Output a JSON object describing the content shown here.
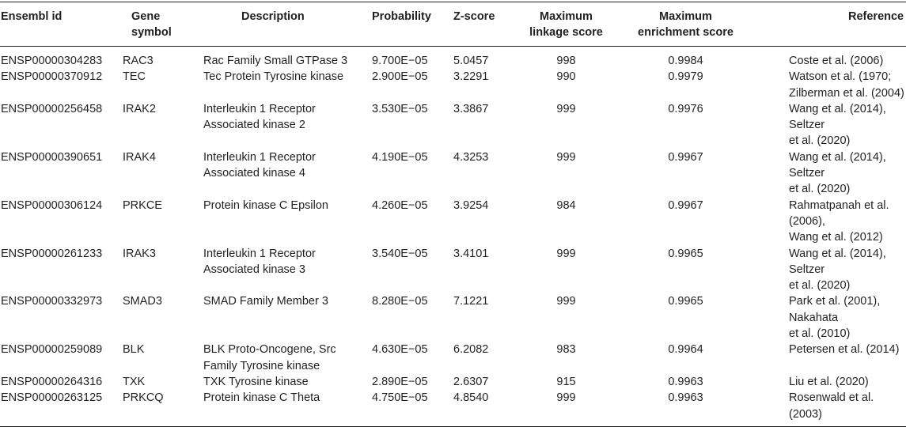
{
  "headers": {
    "ensembl": "Ensembl id",
    "symbol_line1": "Gene",
    "symbol_line2": "symbol",
    "description": "Description",
    "probability": "Probability",
    "zscore": "Z-score",
    "linkage_line1": "Maximum",
    "linkage_line2": "linkage score",
    "enrichment_line1": "Maximum",
    "enrichment_line2": "enrichment score",
    "reference": "Reference"
  },
  "rows": [
    {
      "id": "ENSP00000304283",
      "symbol": "RAC3",
      "desc1": "Rac Family Small GTPase 3",
      "desc2": "",
      "prob": "9.700E−05",
      "z": "5.0457",
      "link": "998",
      "enr": "0.9984",
      "ref1": "Coste et al. (2006)",
      "ref2": ""
    },
    {
      "id": "ENSP00000370912",
      "symbol": "TEC",
      "desc1": "Tec Protein Tyrosine kinase",
      "desc2": "",
      "prob": "2.900E−05",
      "z": "3.2291",
      "link": "990",
      "enr": "0.9979",
      "ref1": "Watson et al. (1970;",
      "ref2": "Zilberman et al. (2004)"
    },
    {
      "id": "ENSP00000256458",
      "symbol": "IRAK2",
      "desc1": "Interleukin 1 Receptor",
      "desc2": "Associated kinase 2",
      "prob": "3.530E−05",
      "z": "3.3867",
      "link": "999",
      "enr": "0.9976",
      "ref1": "Wang et al. (2014), Seltzer",
      "ref2": "et al. (2020)"
    },
    {
      "id": "ENSP00000390651",
      "symbol": "IRAK4",
      "desc1": "Interleukin 1 Receptor",
      "desc2": "Associated kinase 4",
      "prob": "4.190E−05",
      "z": "4.3253",
      "link": "999",
      "enr": "0.9967",
      "ref1": "Wang et al. (2014), Seltzer",
      "ref2": "et al. (2020)"
    },
    {
      "id": "ENSP00000306124",
      "symbol": "PRKCE",
      "desc1": "Protein kinase C Epsilon",
      "desc2": "",
      "prob": "4.260E−05",
      "z": "3.9254",
      "link": "984",
      "enr": "0.9967",
      "ref1": "Rahmatpanah et al. (2006),",
      "ref2": "Wang et al. (2012)"
    },
    {
      "id": "ENSP00000261233",
      "symbol": "IRAK3",
      "desc1": "Interleukin 1 Receptor",
      "desc2": "Associated kinase 3",
      "prob": "3.540E−05",
      "z": "3.4101",
      "link": "999",
      "enr": "0.9965",
      "ref1": "Wang et al. (2014), Seltzer",
      "ref2": "et al. (2020)"
    },
    {
      "id": "ENSP00000332973",
      "symbol": "SMAD3",
      "desc1": "SMAD Family Member 3",
      "desc2": "",
      "prob": "8.280E−05",
      "z": "7.1221",
      "link": "999",
      "enr": "0.9965",
      "ref1": "Park et al. (2001), Nakahata",
      "ref2": "et al. (2010)"
    },
    {
      "id": "ENSP00000259089",
      "symbol": "BLK",
      "desc1": "BLK Proto-Oncogene, Src",
      "desc2": "Family Tyrosine kinase",
      "prob": "4.630E−05",
      "z": "6.2082",
      "link": "983",
      "enr": "0.9964",
      "ref1": "Petersen et al. (2014)",
      "ref2": ""
    },
    {
      "id": "ENSP00000264316",
      "symbol": "TXK",
      "desc1": "TXK Tyrosine kinase",
      "desc2": "",
      "prob": "2.890E−05",
      "z": "2.6307",
      "link": "915",
      "enr": "0.9963",
      "ref1": "Liu et al. (2020)",
      "ref2": ""
    },
    {
      "id": "ENSP00000263125",
      "symbol": "PRKCQ",
      "desc1": "Protein kinase C Theta",
      "desc2": "",
      "prob": "4.750E−05",
      "z": "4.8540",
      "link": "999",
      "enr": "0.9963",
      "ref1": "Rosenwald et al. (2003)",
      "ref2": ""
    }
  ]
}
